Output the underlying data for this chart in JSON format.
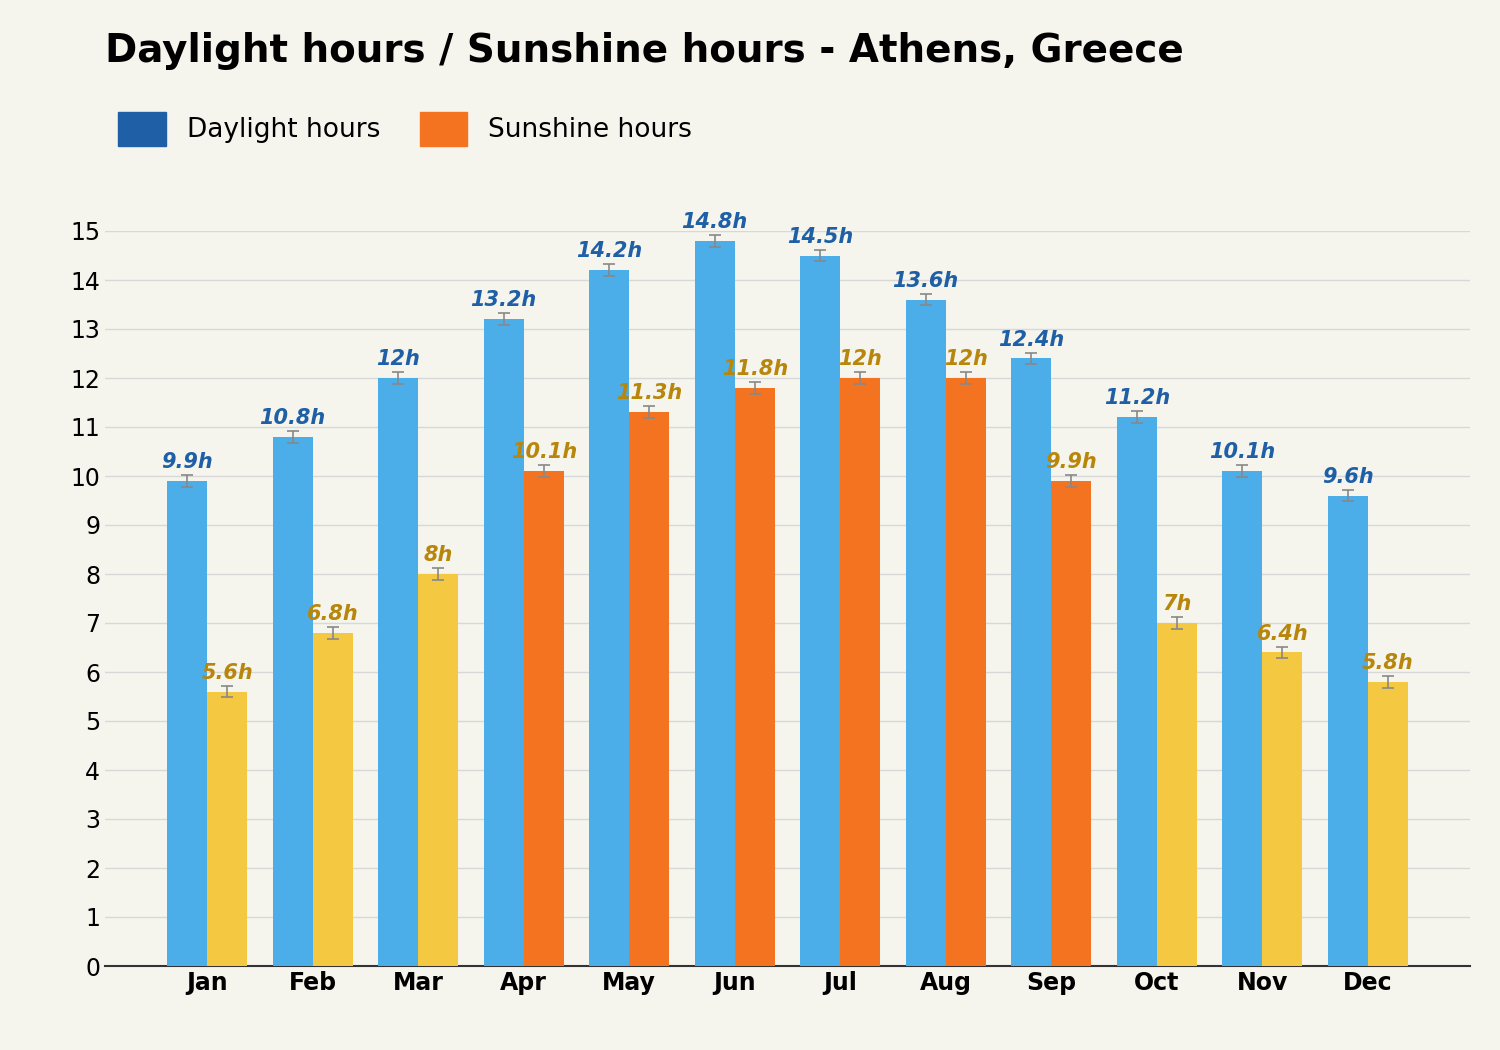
{
  "title": "Daylight hours / Sunshine hours - Athens, Greece",
  "months": [
    "Jan",
    "Feb",
    "Mar",
    "Apr",
    "May",
    "Jun",
    "Jul",
    "Aug",
    "Sep",
    "Oct",
    "Nov",
    "Dec"
  ],
  "daylight_hours": [
    9.9,
    10.8,
    12.0,
    13.2,
    14.2,
    14.8,
    14.5,
    13.6,
    12.4,
    11.2,
    10.1,
    9.6
  ],
  "sunshine_hours": [
    5.6,
    6.8,
    8.0,
    10.1,
    11.3,
    11.8,
    12.0,
    12.0,
    9.9,
    7.0,
    6.4,
    5.8
  ],
  "daylight_color": "#4baee8",
  "sunshine_colors": [
    "#f5c842",
    "#f5c842",
    "#f5c842",
    "#f47320",
    "#f47320",
    "#f47320",
    "#f47320",
    "#f47320",
    "#f47320",
    "#f5c842",
    "#f5c842",
    "#f5c842"
  ],
  "legend_daylight_color": "#1f5fa6",
  "legend_sunshine_color": "#f47320",
  "label_daylight_color": "#1f5fa6",
  "label_sunshine_color": "#b8860b",
  "ylim": [
    0,
    15
  ],
  "yticks": [
    0,
    1,
    2,
    3,
    4,
    5,
    6,
    7,
    8,
    9,
    10,
    11,
    12,
    13,
    14,
    15
  ],
  "background_color": "#f5f5ee",
  "title_fontsize": 28,
  "label_fontsize": 15,
  "tick_fontsize": 17,
  "legend_fontsize": 19,
  "bar_width": 0.38,
  "grid_color": "#d8d8d8"
}
